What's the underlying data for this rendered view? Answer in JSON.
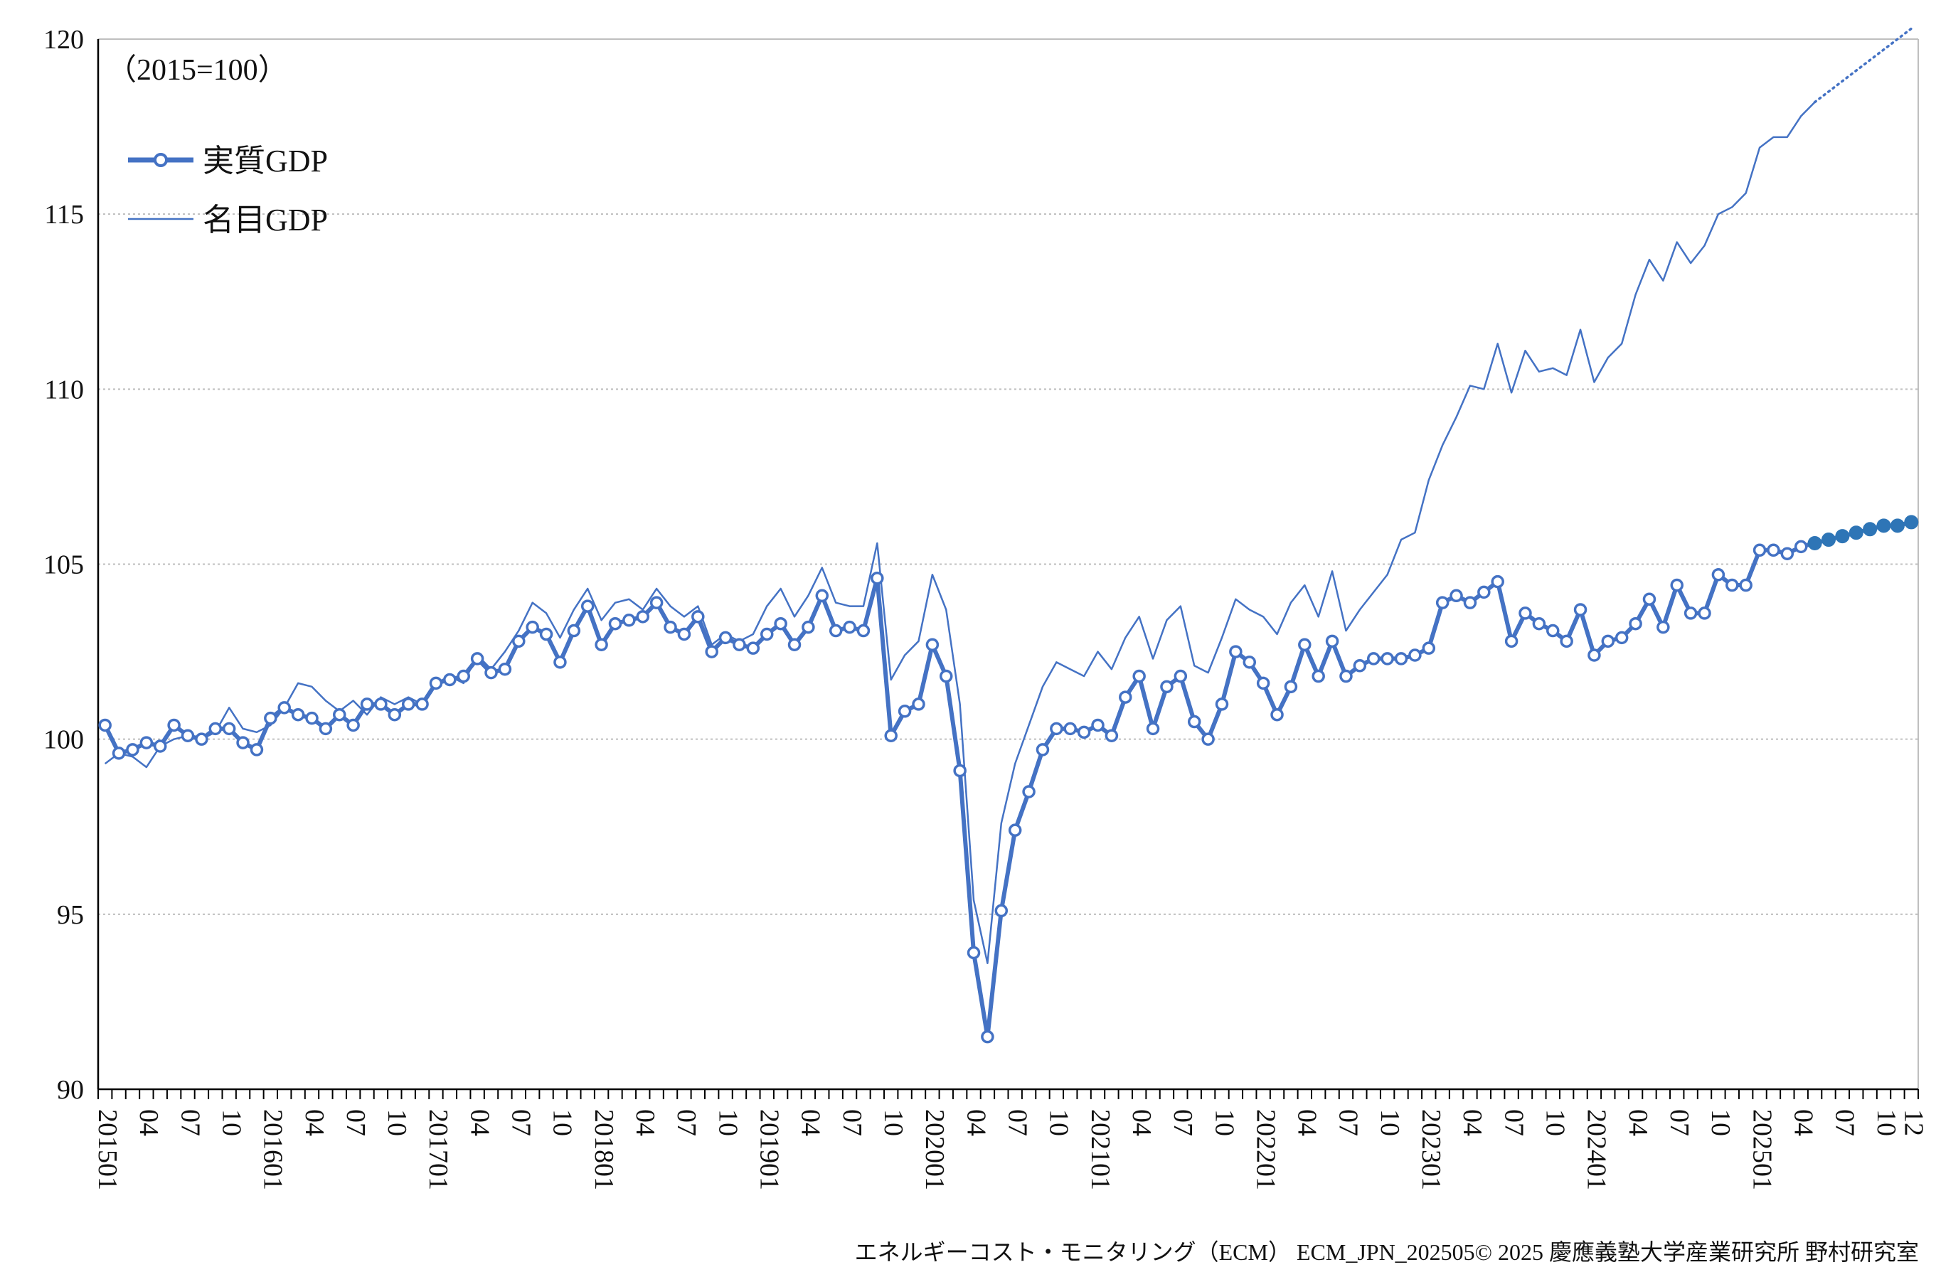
{
  "chart_data": {
    "type": "line",
    "unit_label": "（2015=100）",
    "credit": "エネルギーコスト・モニタリング（ECM） ECM_JPN_202505© 2025 慶應義塾大学産業研究所 野村研究室",
    "ylim": [
      90,
      120
    ],
    "yticks": [
      "90",
      "95",
      "100",
      "105",
      "110",
      "115",
      "120"
    ],
    "grid": true,
    "legend_position": "top-left",
    "x_start": "201501",
    "x_end": "202512",
    "x_tick_labels": [
      "201501",
      "04",
      "07",
      "10",
      "201601",
      "04",
      "07",
      "10",
      "201701",
      "04",
      "07",
      "10",
      "201801",
      "04",
      "07",
      "10",
      "201901",
      "04",
      "07",
      "10",
      "202001",
      "04",
      "07",
      "10",
      "202101",
      "04",
      "07",
      "10",
      "202201",
      "04",
      "07",
      "10",
      "202301",
      "04",
      "07",
      "10",
      "202401",
      "04",
      "07",
      "10",
      "202501",
      "04",
      "07",
      "10",
      "12"
    ],
    "colors": {
      "real": "#4472c4",
      "nominal": "#4472c4",
      "forecast": "#2e75b6",
      "grid": "#bfbfbf",
      "axis": "#000000"
    },
    "series": [
      {
        "name": "実質GDP",
        "style": "thick-with-hollow-markers",
        "values": [
          100.4,
          99.6,
          99.7,
          99.9,
          99.8,
          100.4,
          100.1,
          100.0,
          100.3,
          100.3,
          99.9,
          99.7,
          100.6,
          100.9,
          100.7,
          100.6,
          100.3,
          100.7,
          100.4,
          101.0,
          101.0,
          100.7,
          101.0,
          101.0,
          101.6,
          101.7,
          101.8,
          102.3,
          101.9,
          102.0,
          102.8,
          103.2,
          103.0,
          102.2,
          103.1,
          103.8,
          102.7,
          103.3,
          103.4,
          103.5,
          103.9,
          103.2,
          103.0,
          103.5,
          102.5,
          102.9,
          102.7,
          102.6,
          103.0,
          103.3,
          102.7,
          103.2,
          104.1,
          103.1,
          103.2,
          103.1,
          104.6,
          100.1,
          100.8,
          101.0,
          102.7,
          101.8,
          99.1,
          93.9,
          91.5,
          95.1,
          97.4,
          98.5,
          99.7,
          100.3,
          100.3,
          100.2,
          100.4,
          100.1,
          101.2,
          101.8,
          100.3,
          101.5,
          101.8,
          100.5,
          100.0,
          101.0,
          102.5,
          102.2,
          101.6,
          100.7,
          101.5,
          102.7,
          101.8,
          102.8,
          101.8,
          102.1,
          102.3,
          102.3,
          102.3,
          102.4,
          102.6,
          103.9,
          104.1,
          103.9,
          104.2,
          104.5,
          102.8,
          103.6,
          103.3,
          103.1,
          102.8,
          103.7,
          102.4,
          102.8,
          102.9,
          103.3,
          104.0,
          103.2,
          104.4,
          103.6,
          103.6,
          104.7,
          104.4,
          104.4,
          105.4,
          105.4,
          105.3,
          105.5,
          105.6,
          105.7,
          105.8,
          105.9,
          106.0,
          106.1,
          106.1,
          106.2
        ],
        "forecast_from_index": 124
      },
      {
        "name": "名目GDP",
        "style": "thin-line",
        "values": [
          99.3,
          99.6,
          99.5,
          99.2,
          99.8,
          100.0,
          100.1,
          100.0,
          100.2,
          100.9,
          100.3,
          100.2,
          100.4,
          100.9,
          101.6,
          101.5,
          101.1,
          100.8,
          101.1,
          100.7,
          101.2,
          101.0,
          101.2,
          101.0,
          101.6,
          101.8,
          101.6,
          102.4,
          102.0,
          102.5,
          103.1,
          103.9,
          103.6,
          102.9,
          103.7,
          104.3,
          103.4,
          103.9,
          104.0,
          103.7,
          104.3,
          103.8,
          103.5,
          103.8,
          102.7,
          103.0,
          102.8,
          103.0,
          103.8,
          104.3,
          103.5,
          104.1,
          104.9,
          103.9,
          103.8,
          103.8,
          105.6,
          101.7,
          102.4,
          102.8,
          104.7,
          103.7,
          101.0,
          95.4,
          93.6,
          97.6,
          99.3,
          100.4,
          101.5,
          102.2,
          102.0,
          101.8,
          102.5,
          102.0,
          102.9,
          103.5,
          102.3,
          103.4,
          103.8,
          102.1,
          101.9,
          102.9,
          104.0,
          103.7,
          103.5,
          103.0,
          103.9,
          104.4,
          103.5,
          104.8,
          103.1,
          103.7,
          104.2,
          104.7,
          105.7,
          105.9,
          107.4,
          108.4,
          109.2,
          110.1,
          110.0,
          111.3,
          109.9,
          111.1,
          110.5,
          110.6,
          110.4,
          111.7,
          110.2,
          110.9,
          111.3,
          112.7,
          113.7,
          113.1,
          114.2,
          113.6,
          114.1,
          115.0,
          115.2,
          115.6,
          116.9,
          117.2,
          117.2,
          117.8,
          118.2,
          118.5,
          118.8,
          119.1,
          119.4,
          119.7,
          120.0,
          120.3
        ],
        "forecast_from_index": 124
      }
    ]
  }
}
